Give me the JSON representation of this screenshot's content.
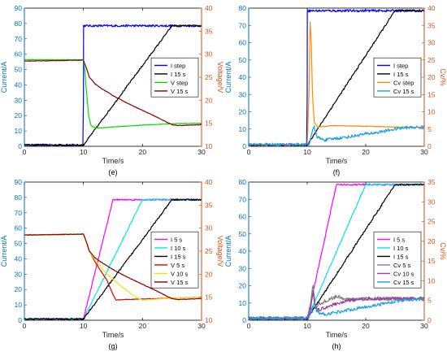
{
  "colors": {
    "left_axis": "#0072BD",
    "right_axis": "#D95319",
    "frame": "#000000"
  },
  "chart_data": [
    {
      "panel_label": "(e)",
      "type": "line",
      "xlabel": "Time/s",
      "ylabel_left": "Current/A",
      "ylabel_right": "Voltage/V",
      "xlim": [
        0,
        30
      ],
      "ylim_left": [
        0,
        90
      ],
      "ylim_right": [
        10,
        40
      ],
      "xticks": [
        0,
        10,
        20,
        30
      ],
      "yticks_left": [
        0,
        10,
        20,
        30,
        40,
        50,
        60,
        70,
        80,
        90
      ],
      "yticks_right": [
        10,
        15,
        20,
        25,
        30,
        35,
        40
      ],
      "grid": false,
      "legend_position": "center-right",
      "series": [
        {
          "name": "I step",
          "axis": "left",
          "color": "#0000FF",
          "noise": 0.7,
          "x": [
            0,
            9.9,
            10.0,
            10.02,
            30
          ],
          "y": [
            0.8,
            0.8,
            30,
            78.5,
            78.5
          ]
        },
        {
          "name": "I 15 s",
          "axis": "left",
          "color": "#000000",
          "noise": 0.5,
          "x": [
            0,
            10,
            25,
            30
          ],
          "y": [
            0.8,
            0.8,
            78.5,
            78.5
          ]
        },
        {
          "name": "V step",
          "axis": "right",
          "color": "#00DD00",
          "noise": 0.05,
          "x": [
            0,
            10,
            10.2,
            10.5,
            10.9,
            11.3,
            12,
            13,
            15,
            20,
            25,
            30
          ],
          "y": [
            28.8,
            28.8,
            27.0,
            22.0,
            16.5,
            14.5,
            14.0,
            14.0,
            14.2,
            14.6,
            14.9,
            15.0
          ]
        },
        {
          "name": "V 15 s",
          "axis": "right",
          "color": "#8B0000",
          "noise": 0.05,
          "x": [
            0,
            10,
            10.5,
            11,
            12,
            13,
            15,
            18,
            20,
            22,
            24,
            25,
            26,
            30
          ],
          "y": [
            28.5,
            28.7,
            27.0,
            25.0,
            23.5,
            22.6,
            21.0,
            19.0,
            17.8,
            16.6,
            15.3,
            14.7,
            14.5,
            14.7
          ]
        }
      ]
    },
    {
      "panel_label": "(f)",
      "type": "line",
      "xlabel": "Time/s",
      "ylabel_left": "Current/A",
      "ylabel_right": "Cv/%",
      "xlim": [
        0,
        30
      ],
      "ylim_left": [
        0,
        80
      ],
      "ylim_right": [
        0,
        40
      ],
      "xticks": [
        0,
        10,
        20,
        30
      ],
      "yticks_left": [
        0,
        10,
        20,
        30,
        40,
        50,
        60,
        70,
        80
      ],
      "yticks_right": [
        0,
        5,
        10,
        15,
        20,
        25,
        30,
        35,
        40
      ],
      "grid": false,
      "legend_position": "center-right",
      "series": [
        {
          "name": "I step",
          "axis": "left",
          "color": "#0000FF",
          "noise": 0.7,
          "x": [
            0,
            9.9,
            10.0,
            10.02,
            30
          ],
          "y": [
            0.8,
            0.8,
            30,
            78.5,
            78.5
          ]
        },
        {
          "name": "I 15 s",
          "axis": "left",
          "color": "#000000",
          "noise": 0.5,
          "x": [
            0,
            10,
            25,
            30
          ],
          "y": [
            0.8,
            0.8,
            78.5,
            78.5
          ]
        },
        {
          "name": "Cv step",
          "axis": "right",
          "color": "#FF8C00",
          "noise": 0.08,
          "x": [
            0,
            10.0,
            10.3,
            10.5,
            10.7,
            10.9,
            11.2,
            11.8,
            13,
            15,
            20,
            25,
            30
          ],
          "y": [
            0.5,
            0.5,
            15,
            36,
            30,
            15,
            7,
            5.5,
            5.8,
            6.0,
            5.8,
            5.6,
            5.5
          ]
        },
        {
          "name": "Cv 15 s",
          "axis": "right",
          "color": "#1EA0E0",
          "noise": 0.45,
          "x": [
            0,
            10.3,
            10.8,
            11.2,
            11.6,
            12.2,
            13,
            15,
            17,
            20,
            22,
            25,
            27,
            30
          ],
          "y": [
            0.5,
            0.5,
            4.0,
            5.5,
            3.0,
            2.2,
            1.8,
            2.3,
            2.7,
            3.6,
            4.0,
            5.0,
            5.4,
            5.5
          ]
        }
      ]
    },
    {
      "panel_label": "(g)",
      "type": "line",
      "xlabel": "Time/s",
      "ylabel_left": "Current/A",
      "ylabel_right": "Voltage/V",
      "xlim": [
        0,
        30
      ],
      "ylim_left": [
        0,
        90
      ],
      "ylim_right": [
        10,
        40
      ],
      "xticks": [
        0,
        10,
        20,
        30
      ],
      "yticks_left": [
        0,
        10,
        20,
        30,
        40,
        50,
        60,
        70,
        80,
        90
      ],
      "yticks_right": [
        10,
        15,
        20,
        25,
        30,
        35,
        40
      ],
      "grid": false,
      "legend_position": "center-right",
      "series": [
        {
          "name": "I 5 s",
          "axis": "left",
          "color": "#FF00FF",
          "noise": 0.5,
          "x": [
            0,
            10,
            15,
            30
          ],
          "y": [
            0.8,
            0.8,
            78.5,
            78.5
          ]
        },
        {
          "name": "I 10 s",
          "axis": "left",
          "color": "#00E5E5",
          "noise": 0.5,
          "x": [
            0,
            10,
            20,
            30
          ],
          "y": [
            0.8,
            0.8,
            78.5,
            78.5
          ]
        },
        {
          "name": "I 15 s",
          "axis": "left",
          "color": "#000000",
          "noise": 0.5,
          "x": [
            0,
            10,
            25,
            30
          ],
          "y": [
            0.8,
            0.8,
            78.5,
            78.5
          ]
        },
        {
          "name": "V 5 s",
          "axis": "right",
          "color": "#DD0000",
          "noise": 0.05,
          "x": [
            0,
            10,
            10.5,
            11,
            12,
            13,
            14,
            15,
            15.5,
            17,
            20,
            25,
            30
          ],
          "y": [
            28.5,
            28.7,
            27.0,
            25.0,
            22.6,
            20.6,
            18.6,
            15.6,
            14.4,
            14.5,
            14.6,
            14.8,
            15.0
          ]
        },
        {
          "name": "V 10 s",
          "axis": "right",
          "color": "#F2E600",
          "noise": 0.05,
          "x": [
            0,
            10,
            10.5,
            11,
            12,
            13,
            14,
            16,
            18,
            19.5,
            20,
            25,
            30
          ],
          "y": [
            28.5,
            28.7,
            27.0,
            25.0,
            23.0,
            21.4,
            20.0,
            17.8,
            15.8,
            14.6,
            14.4,
            14.8,
            15.0
          ]
        },
        {
          "name": "V 15 s",
          "axis": "right",
          "color": "#8B0000",
          "noise": 0.05,
          "x": [
            0,
            10,
            10.5,
            11,
            12,
            13,
            15,
            18,
            20,
            22,
            24,
            25,
            26,
            30
          ],
          "y": [
            28.5,
            28.7,
            27.0,
            25.0,
            23.5,
            22.6,
            21.0,
            19.0,
            17.8,
            16.6,
            15.3,
            14.7,
            14.5,
            14.7
          ]
        }
      ]
    },
    {
      "panel_label": "(h)",
      "type": "line",
      "xlabel": "Time/s",
      "ylabel_left": "Current/A",
      "ylabel_right": "Cv/%",
      "xlim": [
        0,
        30
      ],
      "ylim_left": [
        0,
        80
      ],
      "ylim_right": [
        0,
        35
      ],
      "xticks": [
        0,
        10,
        20,
        30
      ],
      "yticks_left": [
        0,
        10,
        20,
        30,
        40,
        50,
        60,
        70,
        80
      ],
      "yticks_right": [
        0,
        5,
        10,
        15,
        20,
        25,
        30,
        35
      ],
      "grid": false,
      "legend_position": "center-right",
      "series": [
        {
          "name": "I 5 s",
          "axis": "left",
          "color": "#FF00FF",
          "noise": 0.5,
          "x": [
            0,
            10,
            15,
            30
          ],
          "y": [
            0.8,
            0.8,
            78.5,
            78.5
          ]
        },
        {
          "name": "I 10 s",
          "axis": "left",
          "color": "#00E5E5",
          "noise": 0.5,
          "x": [
            0,
            10,
            20,
            30
          ],
          "y": [
            0.8,
            0.8,
            78.5,
            78.5
          ]
        },
        {
          "name": "I 15 s",
          "axis": "left",
          "color": "#000000",
          "noise": 0.5,
          "x": [
            0,
            10,
            25,
            30
          ],
          "y": [
            0.8,
            0.8,
            78.5,
            78.5
          ]
        },
        {
          "name": "Cv 5 s",
          "axis": "right",
          "color": "#808080",
          "noise": 0.45,
          "x": [
            0,
            10.2,
            10.6,
            11.0,
            11.4,
            12,
            13,
            15,
            17,
            20,
            25,
            30
          ],
          "y": [
            0.5,
            0.5,
            4.5,
            9.0,
            3.5,
            4.0,
            4.8,
            6.0,
            5.2,
            5.5,
            5.4,
            5.5
          ]
        },
        {
          "name": "Cv 10 s",
          "axis": "right",
          "color": "#9B3DA5",
          "noise": 0.4,
          "x": [
            0,
            10.2,
            10.6,
            11.0,
            11.4,
            12,
            13,
            15,
            17,
            20,
            25,
            30
          ],
          "y": [
            0.5,
            0.5,
            3.0,
            7.5,
            3.0,
            2.6,
            3.2,
            4.2,
            5.0,
            5.4,
            5.5,
            5.5
          ]
        },
        {
          "name": "Cv 15 s",
          "axis": "right",
          "color": "#1EA0E0",
          "noise": 0.4,
          "x": [
            0,
            10.3,
            10.8,
            11.2,
            11.6,
            12.2,
            13,
            15,
            17,
            20,
            22,
            25,
            27,
            30
          ],
          "y": [
            0.5,
            0.5,
            2.5,
            4.5,
            2.5,
            1.8,
            1.5,
            2.0,
            2.6,
            3.4,
            3.9,
            4.8,
            5.2,
            5.3
          ]
        }
      ]
    }
  ]
}
